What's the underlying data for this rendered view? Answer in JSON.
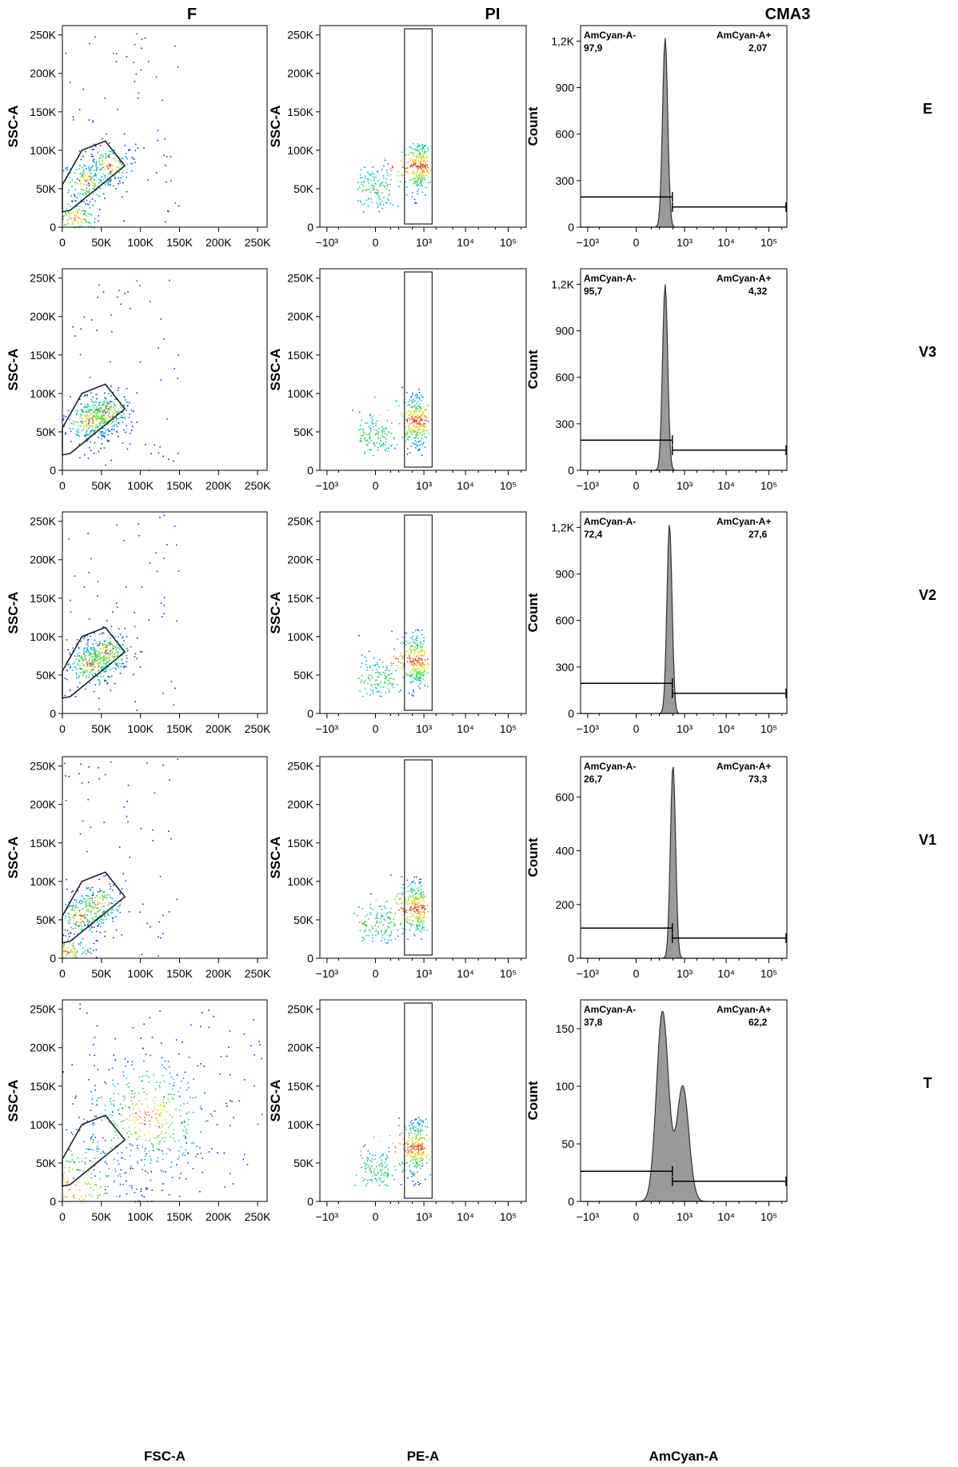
{
  "column_titles": [
    "F",
    "PI",
    "CMA3"
  ],
  "row_labels": [
    "E",
    "V3",
    "V2",
    "V1",
    "T"
  ],
  "chart_data": [
    {
      "type": "scatter",
      "panel": "F",
      "xlabel": "FSC-A",
      "ylabel": "SSC-A",
      "xlim": [
        0,
        262144
      ],
      "ylim": [
        0,
        262144
      ],
      "x_ticks": [
        "0",
        "50K",
        "100K",
        "150K",
        "200K",
        "250K"
      ],
      "y_ticks": [
        "0",
        "50K",
        "100K",
        "150K",
        "200K",
        "250K"
      ],
      "gate": "polygon",
      "rows": [
        {
          "label": "E",
          "clusters": [
            {
              "x": 60000,
              "y": 80000
            },
            {
              "x": 30000,
              "y": 60000
            },
            {
              "x": 15000,
              "y": 12000
            }
          ],
          "spread": "narrow"
        },
        {
          "label": "V3",
          "clusters": [
            {
              "x": 35000,
              "y": 65000
            },
            {
              "x": 55000,
              "y": 75000
            }
          ],
          "spread": "narrow"
        },
        {
          "label": "V2",
          "clusters": [
            {
              "x": 35000,
              "y": 65000
            },
            {
              "x": 55000,
              "y": 80000
            }
          ],
          "spread": "medium"
        },
        {
          "label": "V1",
          "clusters": [
            {
              "x": 25000,
              "y": 55000
            },
            {
              "x": 45000,
              "y": 70000
            },
            {
              "x": 5000,
              "y": 8000
            }
          ],
          "spread": "medium"
        },
        {
          "label": "T",
          "clusters": [
            {
              "x": 110000,
              "y": 110000
            },
            {
              "x": 10000,
              "y": 15000
            }
          ],
          "spread": "wide"
        }
      ]
    },
    {
      "type": "scatter",
      "panel": "PI",
      "xlabel": "PE-A",
      "ylabel": "SSC-A",
      "x_scale": "biexponential",
      "ylim": [
        0,
        262144
      ],
      "x_ticks": [
        "−10³",
        "0",
        "10³",
        "10⁴",
        "10⁵"
      ],
      "y_ticks": [
        "0",
        "50K",
        "100K",
        "150K",
        "200K",
        "250K"
      ],
      "gate": "rectangle",
      "rows": [
        {
          "label": "E",
          "populations": [
            {
              "x": 0,
              "y": 50000
            },
            {
              "x": 700,
              "y": 80000
            }
          ]
        },
        {
          "label": "V3",
          "populations": [
            {
              "x": 0,
              "y": 45000
            },
            {
              "x": 600,
              "y": 65000
            }
          ]
        },
        {
          "label": "V2",
          "populations": [
            {
              "x": 0,
              "y": 45000
            },
            {
              "x": 600,
              "y": 70000
            }
          ]
        },
        {
          "label": "V1",
          "populations": [
            {
              "x": 0,
              "y": 45000
            },
            {
              "x": 600,
              "y": 65000
            }
          ]
        },
        {
          "label": "T",
          "populations": [
            {
              "x": 0,
              "y": 40000
            },
            {
              "x": 600,
              "y": 70000
            }
          ]
        }
      ]
    },
    {
      "type": "area",
      "panel": "CMA3",
      "xlabel": "AmCyan-A",
      "ylabel": "Count",
      "x_scale": "biexponential",
      "x_ticks": [
        "−10³",
        "0",
        "10³",
        "10⁴",
        "10⁵"
      ],
      "gate_labels": [
        "AmCyan-A-",
        "AmCyan-A+"
      ],
      "rows": [
        {
          "label": "E",
          "ylim": [
            0,
            1300
          ],
          "y_ticks": [
            "0",
            "300",
            "600",
            "900",
            "1,2K"
          ],
          "neg": "97,9",
          "pos": "2,07",
          "peaks": [
            {
              "x": 300,
              "count": 1220
            }
          ]
        },
        {
          "label": "V3",
          "ylim": [
            0,
            1300
          ],
          "y_ticks": [
            "0",
            "300",
            "600",
            "900",
            "1,2K"
          ],
          "neg": "95,7",
          "pos": "4,32",
          "peaks": [
            {
              "x": 300,
              "count": 1200
            }
          ]
        },
        {
          "label": "V2",
          "ylim": [
            0,
            1300
          ],
          "y_ticks": [
            "0",
            "300",
            "600",
            "900",
            "1,2K"
          ],
          "neg": "72,4",
          "pos": "27,6",
          "peaks": [
            {
              "x": 400,
              "count": 1220
            }
          ]
        },
        {
          "label": "V1",
          "ylim": [
            0,
            750
          ],
          "y_ticks": [
            "0",
            "200",
            "400",
            "600"
          ],
          "neg": "26,7",
          "pos": "73,3",
          "peaks": [
            {
              "x": 500,
              "count": 720
            }
          ]
        },
        {
          "label": "T",
          "ylim": [
            0,
            175
          ],
          "y_ticks": [
            "0",
            "50",
            "100",
            "150"
          ],
          "neg": "37,8",
          "pos": "62,2",
          "peaks": [
            {
              "x": 250,
              "count": 165
            },
            {
              "x": 900,
              "count": 100
            }
          ]
        }
      ]
    }
  ]
}
